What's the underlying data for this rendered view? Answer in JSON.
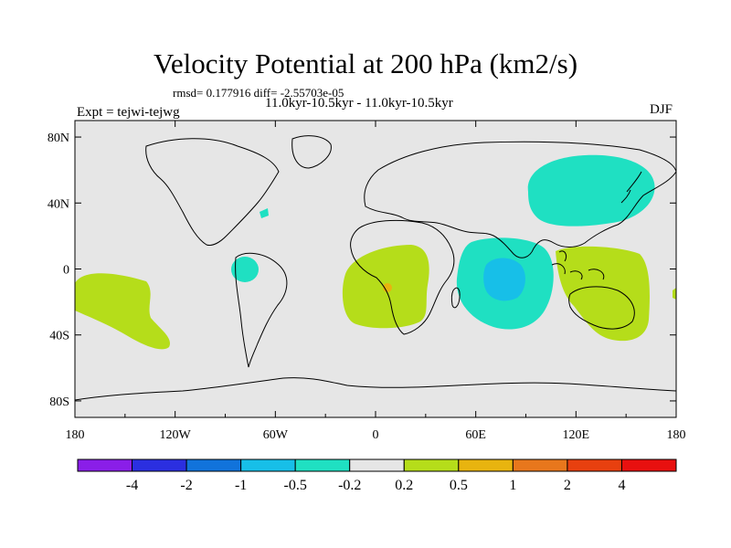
{
  "chart_data": {
    "type": "contour-map",
    "title": "Velocity Potential at 200 hPa (km2/s)",
    "stats": "rmsd= 0.177916 diff= -2.55703e-05",
    "subtitle": "11.0kyr-10.5kyr - 11.0kyr-10.5kyr",
    "left_label": "Expt = tejwi-tejwg",
    "right_label": "DJF",
    "x_axis": {
      "range": [
        -180,
        180
      ],
      "ticks": [
        -180,
        -120,
        -60,
        0,
        60,
        120,
        180
      ],
      "tick_labels": [
        "180",
        "120W",
        "60W",
        "0",
        "60E",
        "120E",
        "180"
      ]
    },
    "y_axis": {
      "range": [
        -90,
        90
      ],
      "ticks": [
        80,
        40,
        0,
        -40,
        -80
      ],
      "tick_labels": [
        "80N",
        "40N",
        "0",
        "40S",
        "80S"
      ]
    },
    "colorbar": {
      "levels": [
        "-4",
        "-2",
        "-1",
        "-0.5",
        "-0.2",
        "0.2",
        "0.5",
        "1",
        "2",
        "4"
      ],
      "colors": [
        "#8a1ee8",
        "#2b2fe0",
        "#1173db",
        "#17bfe8",
        "#1fe0c2",
        "#e6e6e6",
        "#b5dd1a",
        "#e8b40f",
        "#e8771c",
        "#e8400f",
        "#e8100f"
      ]
    },
    "regions": [
      {
        "name": "North Pacific (east Asia)",
        "class": "-0.5 to -0.2",
        "color": "#1fe0c2"
      },
      {
        "name": "Indian Ocean",
        "class": "-0.5 to -0.2",
        "color": "#1fe0c2"
      },
      {
        "name": "Central Indian Ocean core",
        "class": "-1 to -0.5",
        "color": "#17bfe8"
      },
      {
        "name": "Northern South America",
        "class": "-0.5 to -0.2",
        "color": "#1fe0c2"
      },
      {
        "name": "North Atlantic speck",
        "class": "-0.5 to -0.2",
        "color": "#1fe0c2"
      },
      {
        "name": "Central Africa",
        "class": "0.2 to 0.5",
        "color": "#b5dd1a"
      },
      {
        "name": "Central Africa core",
        "class": "0.5 to 1",
        "color": "#e8b40f"
      },
      {
        "name": "Maritime Continent / Australia",
        "class": "0.2 to 0.5",
        "color": "#b5dd1a"
      },
      {
        "name": "South Pacific",
        "class": "0.2 to 0.5",
        "color": "#b5dd1a"
      }
    ]
  }
}
